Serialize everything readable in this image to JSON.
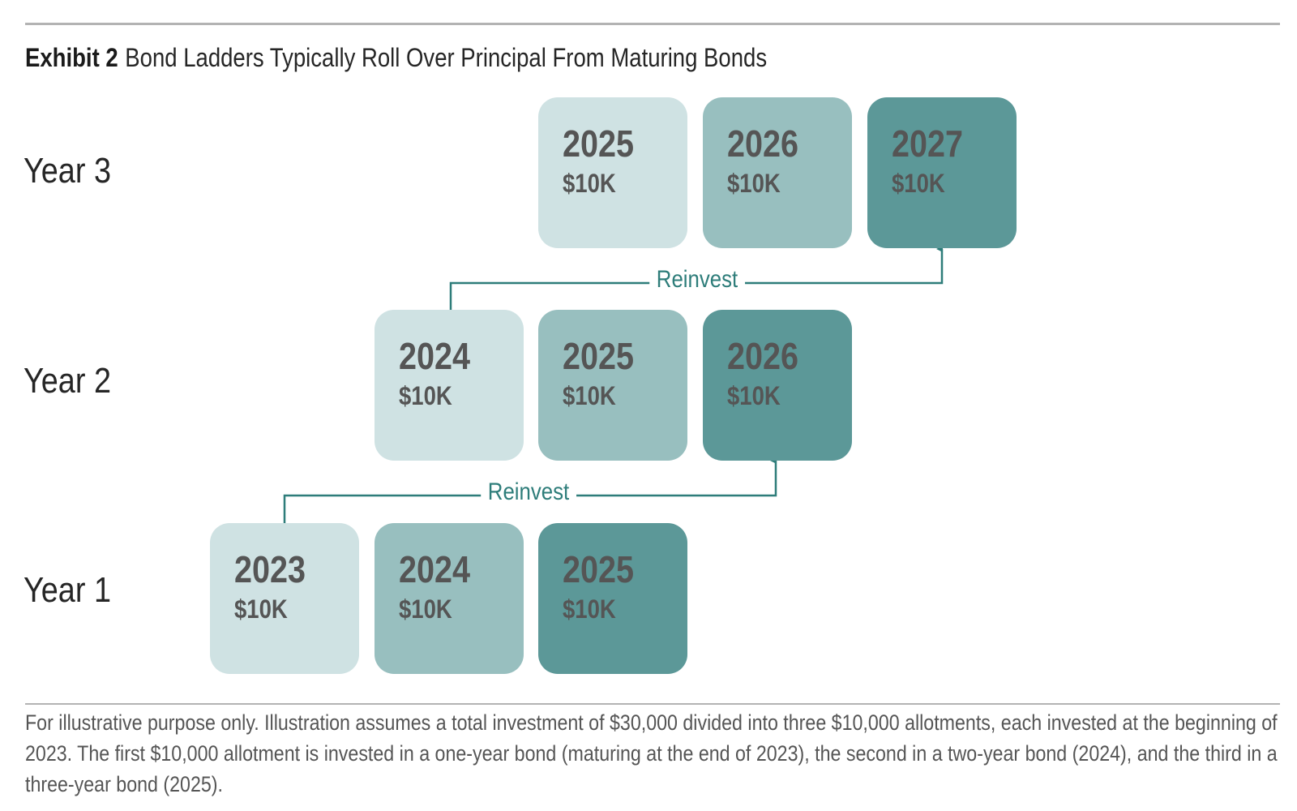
{
  "header": {
    "exhibit_label": "Exhibit 2",
    "title": "Bond Ladders Typically Roll Over Principal From Maturing Bonds"
  },
  "ladder": {
    "rows": [
      {
        "label": "Year 3",
        "bonds": [
          {
            "year": "2025",
            "amount": "$10K"
          },
          {
            "year": "2026",
            "amount": "$10K"
          },
          {
            "year": "2027",
            "amount": "$10K"
          }
        ]
      },
      {
        "label": "Year 2",
        "bonds": [
          {
            "year": "2024",
            "amount": "$10K"
          },
          {
            "year": "2025",
            "amount": "$10K"
          },
          {
            "year": "2026",
            "amount": "$10K"
          }
        ]
      },
      {
        "label": "Year 1",
        "bonds": [
          {
            "year": "2023",
            "amount": "$10K"
          },
          {
            "year": "2024",
            "amount": "$10K"
          },
          {
            "year": "2025",
            "amount": "$10K"
          }
        ]
      }
    ],
    "arrows": [
      {
        "label": "Reinvest",
        "from": "Year 1 2023",
        "to": "Year 2 2026"
      },
      {
        "label": "Reinvest",
        "from": "Year 2 2024",
        "to": "Year 3 2027"
      }
    ]
  },
  "footnote": "For illustrative purpose only. Illustration assumes a total investment of $30,000 divided into three $10,000 allotments, each invested at the beginning of 2023. The first $10,000 allotment is invested in a one-year bond (maturing at the end of 2023), the second in a two-year bond (2024), and the third in a three-year bond (2025).",
  "colors": {
    "shade_light": "#cfe2e3",
    "shade_mid": "#98bfbf",
    "shade_dark": "#5c9898",
    "connector": "#2e7d7a",
    "box_text": "#555555"
  }
}
